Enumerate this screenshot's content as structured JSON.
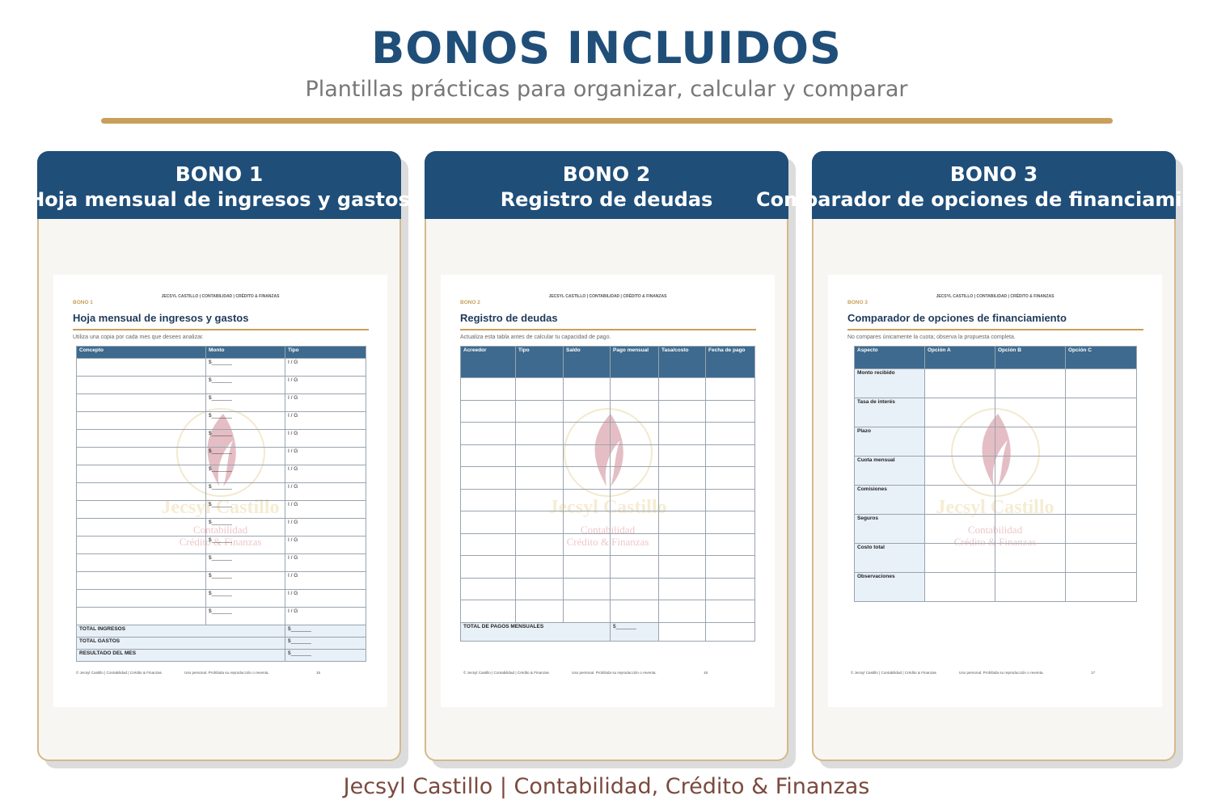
{
  "header": {
    "title": "BONOS INCLUIDOS",
    "subtitle": "Plantillas prácticas para organizar, calcular y comparar"
  },
  "cards": [
    {
      "bono": "BONO 1",
      "title": "Hoja mensual de ingresos y gastos",
      "doc": {
        "brand": "JECSYL CASTILLO | CONTABILIDAD | CRÉDITO & FINANZAS",
        "tag": "BONO 1",
        "heading": "Hoja mensual de ingresos y gastos",
        "note": "Utiliza una copia por cada mes que desees analizar.",
        "columns": [
          "Concepto",
          "Monto",
          "Tipo"
        ],
        "rows": [
          {
            "amount": "$_______",
            "type": "I / G"
          },
          {
            "amount": "$_______",
            "type": "I / G"
          },
          {
            "amount": "$_______",
            "type": "I / G"
          },
          {
            "amount": "$_______",
            "type": "I / G"
          },
          {
            "amount": "$_______",
            "type": "I / G"
          },
          {
            "amount": "$_______",
            "type": "I / G"
          },
          {
            "amount": "$_______",
            "type": "I / G"
          },
          {
            "amount": "$_______",
            "type": "I / G"
          },
          {
            "amount": "$_______",
            "type": "I / G"
          },
          {
            "amount": "$_______",
            "type": "I / G"
          },
          {
            "amount": "$_______",
            "type": "I / G"
          },
          {
            "amount": "$_______",
            "type": "I / G"
          },
          {
            "amount": "$_______",
            "type": "I / G"
          },
          {
            "amount": "$_______",
            "type": "I / G"
          },
          {
            "amount": "$_______",
            "type": "I / G"
          }
        ],
        "totals": [
          {
            "label": "TOTAL INGRESOS",
            "amount": "$_______"
          },
          {
            "label": "TOTAL GASTOS",
            "amount": "$_______"
          },
          {
            "label": "RESULTADO DEL MES",
            "amount": "$_______"
          }
        ],
        "watermark": {
          "name": "Jecsyl Castillo",
          "line1": "Contabilidad",
          "line2": "Crédito & Finanzas"
        },
        "footer_left": "© Jecsyl Castillo | Contabilidad | Crédito & Finanzas",
        "footer_right": "Uso personal. Prohibida su reproducción o reventa.",
        "page": "15"
      }
    },
    {
      "bono": "BONO 2",
      "title": "Registro de deudas",
      "doc": {
        "brand": "JECSYL CASTILLO | CONTABILIDAD | CRÉDITO & FINANZAS",
        "tag": "BONO 2",
        "heading": "Registro de deudas",
        "note": "Actualiza esta tabla antes de calcular tu capacidad de pago.",
        "columns": [
          "Acreedor",
          "Tipo",
          "Saldo",
          "Pago mensual",
          "Tasa/costo",
          "Fecha de pago"
        ],
        "totals": [
          {
            "label": "TOTAL DE PAGOS MENSUALES",
            "amount": "$_______"
          }
        ],
        "watermark": {
          "name": "Jecsyl Castillo",
          "line1": "Contabilidad",
          "line2": "Crédito & Finanzas"
        },
        "footer_left": "© Jecsyl Castillo | Contabilidad | Crédito & Finanzas",
        "footer_right": "Uso personal. Prohibida su reproducción o reventa.",
        "page": "16"
      }
    },
    {
      "bono": "BONO 3",
      "title": "Comparador de opciones de financiamiento",
      "doc": {
        "brand": "JECSYL CASTILLO | CONTABILIDAD | CRÉDITO & FINANZAS",
        "tag": "BONO 3",
        "heading": "Comparador de opciones de financiamiento",
        "note": "No compares únicamente la cuota; observa la propuesta completa.",
        "columns": [
          "Aspecto",
          "Opción A",
          "Opción B",
          "Opción C"
        ],
        "labels": [
          "Monto recibido",
          "Tasa de interés",
          "Plazo",
          "Cuota mensual",
          "Comisiones",
          "Seguros",
          "Costo total",
          "Observaciones"
        ],
        "watermark": {
          "name": "Jecsyl Castillo",
          "line1": "Contabilidad",
          "line2": "Crédito & Finanzas"
        },
        "footer_left": "© Jecsyl Castillo | Contabilidad | Crédito & Finanzas",
        "footer_right": "Uso personal. Prohibida su reproducción o reventa.",
        "page": "17"
      }
    }
  ],
  "footer": "Jecsyl Castillo | Contabilidad, Crédito & Finanzas"
}
